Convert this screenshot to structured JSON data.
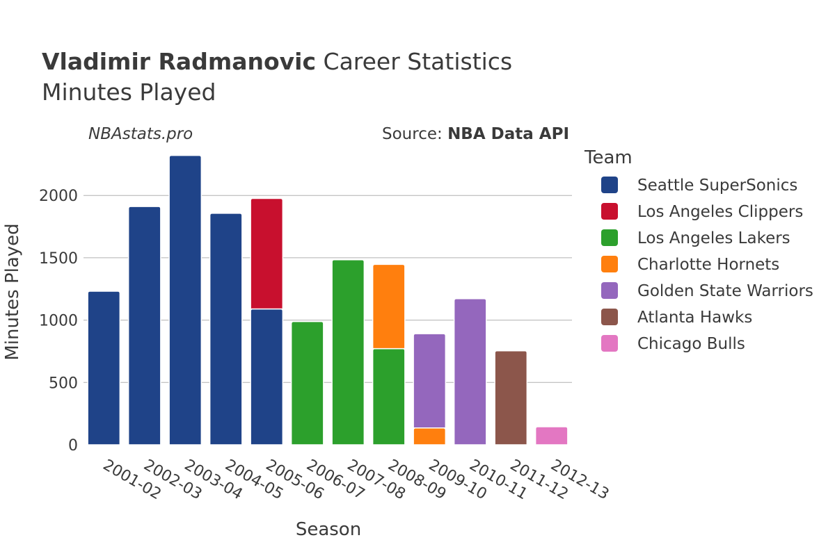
{
  "header": {
    "title_bold": "Vladimir Radmanovic",
    "title_rest": " Career Statistics",
    "subtitle": "Minutes Played",
    "watermark": "NBAstats.pro",
    "source_prefix": "Source: ",
    "source_name": "NBA Data API"
  },
  "chart_data": {
    "type": "bar",
    "stacked": true,
    "title": "Vladimir Radmanovic Career Statistics",
    "subtitle": "Minutes Played",
    "xlabel": "Season",
    "ylabel": "Minutes Played",
    "ylim": [
      0,
      2330
    ],
    "yticks": [
      0,
      500,
      1000,
      1500,
      2000
    ],
    "legend_title": "Team",
    "legend_position": "right",
    "categories": [
      "2001-02",
      "2002-03",
      "2003-04",
      "2004-05",
      "2005-06",
      "2006-07",
      "2007-08",
      "2008-09",
      "2009-10",
      "2010-11",
      "2011-12",
      "2012-13"
    ],
    "series": [
      {
        "name": "Seattle SuperSonics",
        "color": "#1f4388",
        "values": [
          1232,
          1911,
          2321,
          1857,
          1090,
          0,
          0,
          0,
          0,
          0,
          0,
          0
        ]
      },
      {
        "name": "Los Angeles Clippers",
        "color": "#c8102e",
        "values": [
          0,
          0,
          0,
          0,
          886,
          0,
          0,
          0,
          0,
          0,
          0,
          0
        ]
      },
      {
        "name": "Los Angeles Lakers",
        "color": "#2ca02c",
        "values": [
          0,
          0,
          0,
          0,
          0,
          989,
          1484,
          771,
          0,
          0,
          0,
          0
        ]
      },
      {
        "name": "Charlotte Hornets",
        "color": "#ff7f0e",
        "values": [
          0,
          0,
          0,
          0,
          0,
          0,
          0,
          676,
          135,
          0,
          0,
          0
        ]
      },
      {
        "name": "Golden State Warriors",
        "color": "#9467bd",
        "values": [
          0,
          0,
          0,
          0,
          0,
          0,
          0,
          0,
          756,
          1172,
          0,
          0
        ]
      },
      {
        "name": "Atlanta Hawks",
        "color": "#8c564b",
        "values": [
          0,
          0,
          0,
          0,
          0,
          0,
          0,
          0,
          0,
          0,
          754,
          0
        ]
      },
      {
        "name": "Chicago Bulls",
        "color": "#e377c2",
        "values": [
          0,
          0,
          0,
          0,
          0,
          0,
          0,
          0,
          0,
          0,
          0,
          145
        ]
      }
    ]
  }
}
